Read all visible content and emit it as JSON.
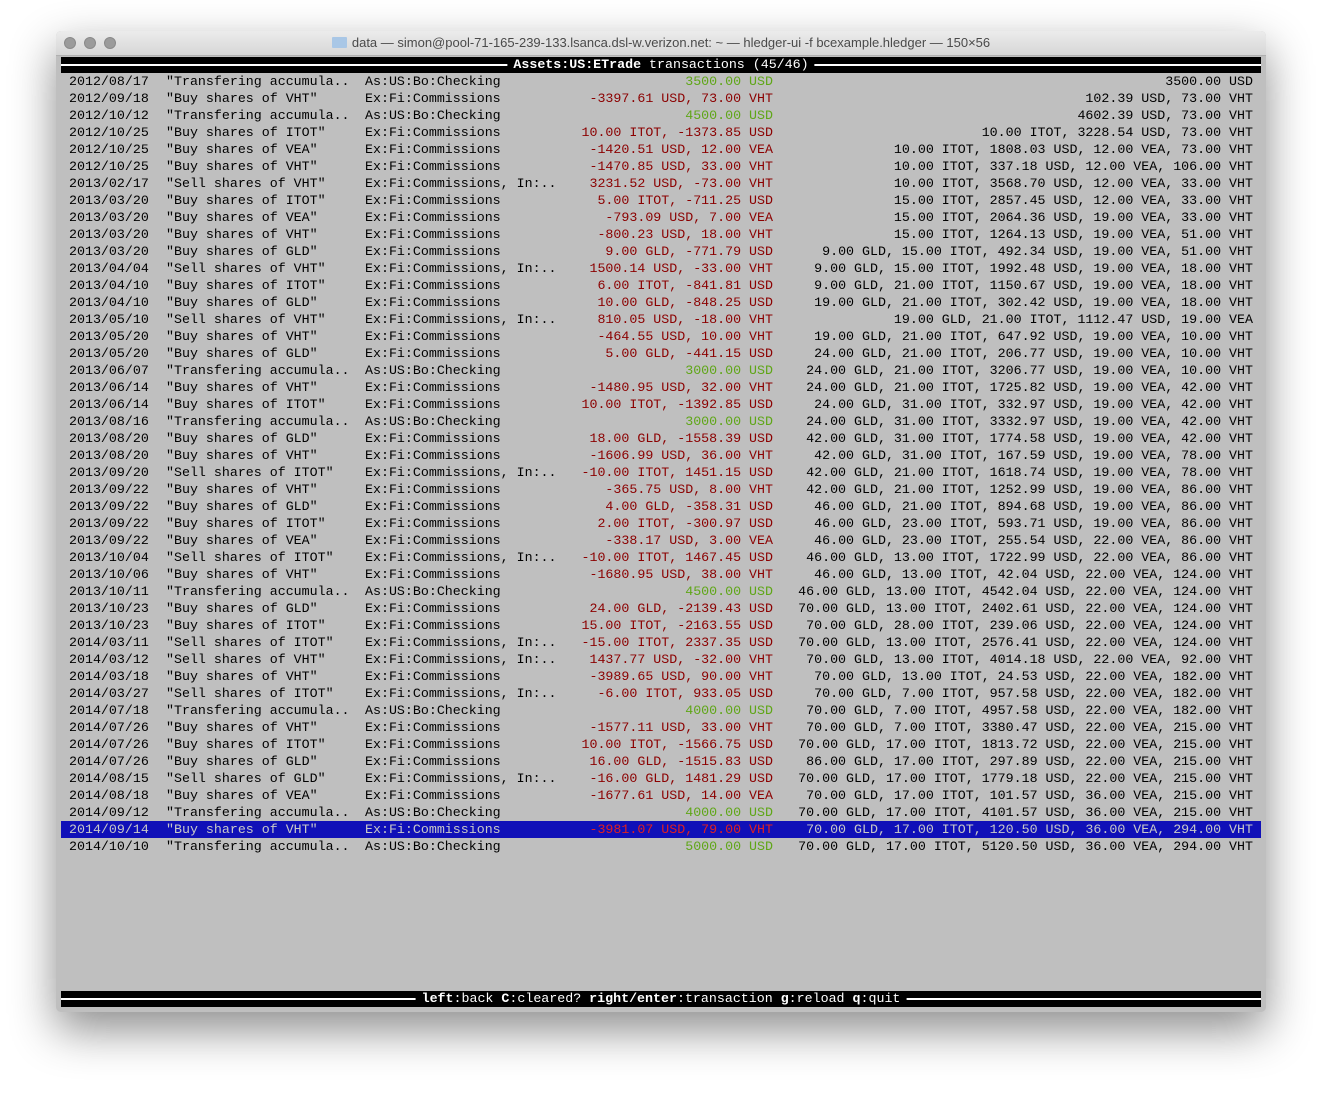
{
  "window": {
    "title": "data — simon@pool-71-165-239-133.lsanca.dsl-w.verizon.net: ~ — hledger-ui -f bcexample.hledger — 150×56"
  },
  "header": {
    "account": "Assets:US:ETrade",
    "rest": " transactions (45/46)"
  },
  "footer": {
    "keys": [
      {
        "k": "left",
        "d": ":back "
      },
      {
        "k": "C",
        "d": ":cleared? "
      },
      {
        "k": "right/enter",
        "d": ":transaction "
      },
      {
        "k": "g",
        "d": ":reload "
      },
      {
        "k": "q",
        "d": ":quit"
      }
    ]
  },
  "colors": {
    "negative": "#8b0000",
    "positive": "#5fa617",
    "selection": "#1010b8"
  },
  "selected_index": 44,
  "rows": [
    {
      "date": "2012/08/17",
      "desc": "\"Transfering accumula..",
      "acct": "As:US:Bo:Checking",
      "change": "3500.00 USD",
      "balance": "3500.00 USD",
      "positive": true
    },
    {
      "date": "2012/09/18",
      "desc": "\"Buy shares of VHT\"",
      "acct": "Ex:Fi:Commissions",
      "change": "-3397.61 USD, 73.00 VHT",
      "balance": "102.39 USD, 73.00 VHT",
      "positive": false
    },
    {
      "date": "2012/10/12",
      "desc": "\"Transfering accumula..",
      "acct": "As:US:Bo:Checking",
      "change": "4500.00 USD",
      "balance": "4602.39 USD, 73.00 VHT",
      "positive": true
    },
    {
      "date": "2012/10/25",
      "desc": "\"Buy shares of ITOT\"",
      "acct": "Ex:Fi:Commissions",
      "change": "10.00 ITOT, -1373.85 USD",
      "balance": "10.00 ITOT, 3228.54 USD, 73.00 VHT",
      "positive": false
    },
    {
      "date": "2012/10/25",
      "desc": "\"Buy shares of VEA\"",
      "acct": "Ex:Fi:Commissions",
      "change": "-1420.51 USD, 12.00 VEA",
      "balance": "10.00 ITOT, 1808.03 USD, 12.00 VEA, 73.00 VHT",
      "positive": false
    },
    {
      "date": "2012/10/25",
      "desc": "\"Buy shares of VHT\"",
      "acct": "Ex:Fi:Commissions",
      "change": "-1470.85 USD, 33.00 VHT",
      "balance": "10.00 ITOT, 337.18 USD, 12.00 VEA, 106.00 VHT",
      "positive": false
    },
    {
      "date": "2013/02/17",
      "desc": "\"Sell shares of VHT\"",
      "acct": "Ex:Fi:Commissions, In:..",
      "change": "3231.52 USD, -73.00 VHT",
      "balance": "10.00 ITOT, 3568.70 USD, 12.00 VEA, 33.00 VHT",
      "positive": false
    },
    {
      "date": "2013/03/20",
      "desc": "\"Buy shares of ITOT\"",
      "acct": "Ex:Fi:Commissions",
      "change": "5.00 ITOT, -711.25 USD",
      "balance": "15.00 ITOT, 2857.45 USD, 12.00 VEA, 33.00 VHT",
      "positive": false
    },
    {
      "date": "2013/03/20",
      "desc": "\"Buy shares of VEA\"",
      "acct": "Ex:Fi:Commissions",
      "change": "-793.09 USD, 7.00 VEA",
      "balance": "15.00 ITOT, 2064.36 USD, 19.00 VEA, 33.00 VHT",
      "positive": false
    },
    {
      "date": "2013/03/20",
      "desc": "\"Buy shares of VHT\"",
      "acct": "Ex:Fi:Commissions",
      "change": "-800.23 USD, 18.00 VHT",
      "balance": "15.00 ITOT, 1264.13 USD, 19.00 VEA, 51.00 VHT",
      "positive": false
    },
    {
      "date": "2013/03/20",
      "desc": "\"Buy shares of GLD\"",
      "acct": "Ex:Fi:Commissions",
      "change": "9.00 GLD, -771.79 USD",
      "balance": "9.00 GLD, 15.00 ITOT, 492.34 USD, 19.00 VEA, 51.00 VHT",
      "positive": false
    },
    {
      "date": "2013/04/04",
      "desc": "\"Sell shares of VHT\"",
      "acct": "Ex:Fi:Commissions, In:..",
      "change": "1500.14 USD, -33.00 VHT",
      "balance": "9.00 GLD, 15.00 ITOT, 1992.48 USD, 19.00 VEA, 18.00 VHT",
      "positive": false
    },
    {
      "date": "2013/04/10",
      "desc": "\"Buy shares of ITOT\"",
      "acct": "Ex:Fi:Commissions",
      "change": "6.00 ITOT, -841.81 USD",
      "balance": "9.00 GLD, 21.00 ITOT, 1150.67 USD, 19.00 VEA, 18.00 VHT",
      "positive": false
    },
    {
      "date": "2013/04/10",
      "desc": "\"Buy shares of GLD\"",
      "acct": "Ex:Fi:Commissions",
      "change": "10.00 GLD, -848.25 USD",
      "balance": "19.00 GLD, 21.00 ITOT, 302.42 USD, 19.00 VEA, 18.00 VHT",
      "positive": false
    },
    {
      "date": "2013/05/10",
      "desc": "\"Sell shares of VHT\"",
      "acct": "Ex:Fi:Commissions, In:..",
      "change": "810.05 USD, -18.00 VHT",
      "balance": "19.00 GLD, 21.00 ITOT, 1112.47 USD, 19.00 VEA",
      "positive": false
    },
    {
      "date": "2013/05/20",
      "desc": "\"Buy shares of VHT\"",
      "acct": "Ex:Fi:Commissions",
      "change": "-464.55 USD, 10.00 VHT",
      "balance": "19.00 GLD, 21.00 ITOT, 647.92 USD, 19.00 VEA, 10.00 VHT",
      "positive": false
    },
    {
      "date": "2013/05/20",
      "desc": "\"Buy shares of GLD\"",
      "acct": "Ex:Fi:Commissions",
      "change": "5.00 GLD, -441.15 USD",
      "balance": "24.00 GLD, 21.00 ITOT, 206.77 USD, 19.00 VEA, 10.00 VHT",
      "positive": false
    },
    {
      "date": "2013/06/07",
      "desc": "\"Transfering accumula..",
      "acct": "As:US:Bo:Checking",
      "change": "3000.00 USD",
      "balance": "24.00 GLD, 21.00 ITOT, 3206.77 USD, 19.00 VEA, 10.00 VHT",
      "positive": true
    },
    {
      "date": "2013/06/14",
      "desc": "\"Buy shares of VHT\"",
      "acct": "Ex:Fi:Commissions",
      "change": "-1480.95 USD, 32.00 VHT",
      "balance": "24.00 GLD, 21.00 ITOT, 1725.82 USD, 19.00 VEA, 42.00 VHT",
      "positive": false
    },
    {
      "date": "2013/06/14",
      "desc": "\"Buy shares of ITOT\"",
      "acct": "Ex:Fi:Commissions",
      "change": "10.00 ITOT, -1392.85 USD",
      "balance": "24.00 GLD, 31.00 ITOT, 332.97 USD, 19.00 VEA, 42.00 VHT",
      "positive": false
    },
    {
      "date": "2013/08/16",
      "desc": "\"Transfering accumula..",
      "acct": "As:US:Bo:Checking",
      "change": "3000.00 USD",
      "balance": "24.00 GLD, 31.00 ITOT, 3332.97 USD, 19.00 VEA, 42.00 VHT",
      "positive": true
    },
    {
      "date": "2013/08/20",
      "desc": "\"Buy shares of GLD\"",
      "acct": "Ex:Fi:Commissions",
      "change": "18.00 GLD, -1558.39 USD",
      "balance": "42.00 GLD, 31.00 ITOT, 1774.58 USD, 19.00 VEA, 42.00 VHT",
      "positive": false
    },
    {
      "date": "2013/08/20",
      "desc": "\"Buy shares of VHT\"",
      "acct": "Ex:Fi:Commissions",
      "change": "-1606.99 USD, 36.00 VHT",
      "balance": "42.00 GLD, 31.00 ITOT, 167.59 USD, 19.00 VEA, 78.00 VHT",
      "positive": false
    },
    {
      "date": "2013/09/20",
      "desc": "\"Sell shares of ITOT\"",
      "acct": "Ex:Fi:Commissions, In:..",
      "change": "-10.00 ITOT, 1451.15 USD",
      "balance": "42.00 GLD, 21.00 ITOT, 1618.74 USD, 19.00 VEA, 78.00 VHT",
      "positive": false
    },
    {
      "date": "2013/09/22",
      "desc": "\"Buy shares of VHT\"",
      "acct": "Ex:Fi:Commissions",
      "change": "-365.75 USD, 8.00 VHT",
      "balance": "42.00 GLD, 21.00 ITOT, 1252.99 USD, 19.00 VEA, 86.00 VHT",
      "positive": false
    },
    {
      "date": "2013/09/22",
      "desc": "\"Buy shares of GLD\"",
      "acct": "Ex:Fi:Commissions",
      "change": "4.00 GLD, -358.31 USD",
      "balance": "46.00 GLD, 21.00 ITOT, 894.68 USD, 19.00 VEA, 86.00 VHT",
      "positive": false
    },
    {
      "date": "2013/09/22",
      "desc": "\"Buy shares of ITOT\"",
      "acct": "Ex:Fi:Commissions",
      "change": "2.00 ITOT, -300.97 USD",
      "balance": "46.00 GLD, 23.00 ITOT, 593.71 USD, 19.00 VEA, 86.00 VHT",
      "positive": false
    },
    {
      "date": "2013/09/22",
      "desc": "\"Buy shares of VEA\"",
      "acct": "Ex:Fi:Commissions",
      "change": "-338.17 USD, 3.00 VEA",
      "balance": "46.00 GLD, 23.00 ITOT, 255.54 USD, 22.00 VEA, 86.00 VHT",
      "positive": false
    },
    {
      "date": "2013/10/04",
      "desc": "\"Sell shares of ITOT\"",
      "acct": "Ex:Fi:Commissions, In:..",
      "change": "-10.00 ITOT, 1467.45 USD",
      "balance": "46.00 GLD, 13.00 ITOT, 1722.99 USD, 22.00 VEA, 86.00 VHT",
      "positive": false
    },
    {
      "date": "2013/10/06",
      "desc": "\"Buy shares of VHT\"",
      "acct": "Ex:Fi:Commissions",
      "change": "-1680.95 USD, 38.00 VHT",
      "balance": "46.00 GLD, 13.00 ITOT, 42.04 USD, 22.00 VEA, 124.00 VHT",
      "positive": false
    },
    {
      "date": "2013/10/11",
      "desc": "\"Transfering accumula..",
      "acct": "As:US:Bo:Checking",
      "change": "4500.00 USD",
      "balance": "46.00 GLD, 13.00 ITOT, 4542.04 USD, 22.00 VEA, 124.00 VHT",
      "positive": true
    },
    {
      "date": "2013/10/23",
      "desc": "\"Buy shares of GLD\"",
      "acct": "Ex:Fi:Commissions",
      "change": "24.00 GLD, -2139.43 USD",
      "balance": "70.00 GLD, 13.00 ITOT, 2402.61 USD, 22.00 VEA, 124.00 VHT",
      "positive": false
    },
    {
      "date": "2013/10/23",
      "desc": "\"Buy shares of ITOT\"",
      "acct": "Ex:Fi:Commissions",
      "change": "15.00 ITOT, -2163.55 USD",
      "balance": "70.00 GLD, 28.00 ITOT, 239.06 USD, 22.00 VEA, 124.00 VHT",
      "positive": false
    },
    {
      "date": "2014/03/11",
      "desc": "\"Sell shares of ITOT\"",
      "acct": "Ex:Fi:Commissions, In:..",
      "change": "-15.00 ITOT, 2337.35 USD",
      "balance": "70.00 GLD, 13.00 ITOT, 2576.41 USD, 22.00 VEA, 124.00 VHT",
      "positive": false
    },
    {
      "date": "2014/03/12",
      "desc": "\"Sell shares of VHT\"",
      "acct": "Ex:Fi:Commissions, In:..",
      "change": "1437.77 USD, -32.00 VHT",
      "balance": "70.00 GLD, 13.00 ITOT, 4014.18 USD, 22.00 VEA, 92.00 VHT",
      "positive": false
    },
    {
      "date": "2014/03/18",
      "desc": "\"Buy shares of VHT\"",
      "acct": "Ex:Fi:Commissions",
      "change": "-3989.65 USD, 90.00 VHT",
      "balance": "70.00 GLD, 13.00 ITOT, 24.53 USD, 22.00 VEA, 182.00 VHT",
      "positive": false
    },
    {
      "date": "2014/03/27",
      "desc": "\"Sell shares of ITOT\"",
      "acct": "Ex:Fi:Commissions, In:..",
      "change": "-6.00 ITOT, 933.05 USD",
      "balance": "70.00 GLD, 7.00 ITOT, 957.58 USD, 22.00 VEA, 182.00 VHT",
      "positive": false
    },
    {
      "date": "2014/07/18",
      "desc": "\"Transfering accumula..",
      "acct": "As:US:Bo:Checking",
      "change": "4000.00 USD",
      "balance": "70.00 GLD, 7.00 ITOT, 4957.58 USD, 22.00 VEA, 182.00 VHT",
      "positive": true
    },
    {
      "date": "2014/07/26",
      "desc": "\"Buy shares of VHT\"",
      "acct": "Ex:Fi:Commissions",
      "change": "-1577.11 USD, 33.00 VHT",
      "balance": "70.00 GLD, 7.00 ITOT, 3380.47 USD, 22.00 VEA, 215.00 VHT",
      "positive": false
    },
    {
      "date": "2014/07/26",
      "desc": "\"Buy shares of ITOT\"",
      "acct": "Ex:Fi:Commissions",
      "change": "10.00 ITOT, -1566.75 USD",
      "balance": "70.00 GLD, 17.00 ITOT, 1813.72 USD, 22.00 VEA, 215.00 VHT",
      "positive": false
    },
    {
      "date": "2014/07/26",
      "desc": "\"Buy shares of GLD\"",
      "acct": "Ex:Fi:Commissions",
      "change": "16.00 GLD, -1515.83 USD",
      "balance": "86.00 GLD, 17.00 ITOT, 297.89 USD, 22.00 VEA, 215.00 VHT",
      "positive": false
    },
    {
      "date": "2014/08/15",
      "desc": "\"Sell shares of GLD\"",
      "acct": "Ex:Fi:Commissions, In:..",
      "change": "-16.00 GLD, 1481.29 USD",
      "balance": "70.00 GLD, 17.00 ITOT, 1779.18 USD, 22.00 VEA, 215.00 VHT",
      "positive": false
    },
    {
      "date": "2014/08/18",
      "desc": "\"Buy shares of VEA\"",
      "acct": "Ex:Fi:Commissions",
      "change": "-1677.61 USD, 14.00 VEA",
      "balance": "70.00 GLD, 17.00 ITOT, 101.57 USD, 36.00 VEA, 215.00 VHT",
      "positive": false
    },
    {
      "date": "2014/09/12",
      "desc": "\"Transfering accumula..",
      "acct": "As:US:Bo:Checking",
      "change": "4000.00 USD",
      "balance": "70.00 GLD, 17.00 ITOT, 4101.57 USD, 36.00 VEA, 215.00 VHT",
      "positive": true
    },
    {
      "date": "2014/09/14",
      "desc": "\"Buy shares of VHT\"",
      "acct": "Ex:Fi:Commissions",
      "change": "-3981.07 USD, 79.00 VHT",
      "balance": "70.00 GLD, 17.00 ITOT, 120.50 USD, 36.00 VEA, 294.00 VHT",
      "positive": false
    },
    {
      "date": "2014/10/10",
      "desc": "\"Transfering accumula..",
      "acct": "As:US:Bo:Checking",
      "change": "5000.00 USD",
      "balance": "70.00 GLD, 17.00 ITOT, 5120.50 USD, 36.00 VEA, 294.00 VHT",
      "positive": true
    }
  ]
}
